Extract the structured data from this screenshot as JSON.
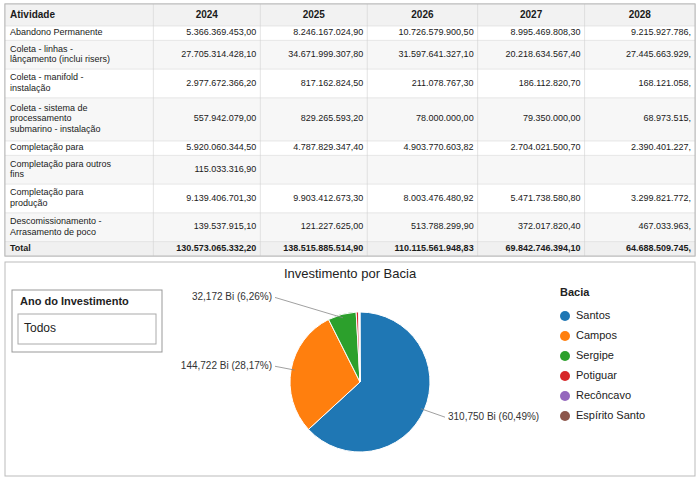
{
  "chart_data": [
    {
      "type": "table",
      "columns": [
        "Atividade",
        "2024",
        "2025",
        "2026",
        "2027",
        "2028"
      ],
      "rows": [
        [
          "Abandono Permanente",
          "5.366.369.453,00",
          "8.246.167.024,90",
          "10.726.579.900,50",
          "8.995.469.808,30",
          "9.215.927.786,"
        ],
        [
          "Coleta - linhas -\nlânçamento (inclui risers)",
          "27.705.314.428,10",
          "34.671.999.307,80",
          "31.597.641.327,10",
          "20.218.634.567,40",
          "27.445.663.929,"
        ],
        [
          "Coleta - manifold -\ninstalação",
          "2.977.672.366,20",
          "817.162.824,50",
          "211.078.767,30",
          "186.112.820,70",
          "168.121.058,"
        ],
        [
          "Coleta - sistema de\nprocessamento\nsubmarino - instalação",
          "557.942.079,00",
          "829.265.593,20",
          "78.000.000,00",
          "79.350.000,00",
          "68.973.515,"
        ],
        [
          "Completação para",
          "5.920.060.344,50",
          "4.787.829.347,40",
          "4.903.770.603,82",
          "2.704.021.500,70",
          "2.390.401.227,"
        ],
        [
          "Completação para outros\nfins",
          "115.033.316,90",
          null,
          null,
          null,
          null
        ],
        [
          "Completação para\nprodução",
          "9.139.406.701,30",
          "9.903.412.673,30",
          "8.003.476.480,92",
          "5.471.738.580,80",
          "3.299.821.772,"
        ],
        [
          "Descomissionamento -\nArrasamento de poco",
          "139.537.915,10",
          "121.227.625,00",
          "513.788.299,90",
          "372.017.820,40",
          "467.033.963,"
        ],
        [
          "Total",
          "130.573.065.332,20",
          "138.515.885.514,90",
          "110.115.561.948,83",
          "69.842.746.394,10",
          "64.688.509.745,"
        ]
      ]
    },
    {
      "type": "pie",
      "title": "Investimento por Bacia",
      "categories": [
        "Santos",
        "Campos",
        "Sergipe",
        "Potiguar",
        "Recôncavo",
        "Espírito Santo"
      ],
      "values": [
        310.75,
        144.722,
        32.172,
        2.8,
        0.9,
        0.6
      ],
      "value_labels": [
        "310,750 Bi (60,49%)",
        "144,722 Bi (28,17%)",
        "32,172 Bi (6,26%)",
        null,
        null,
        null
      ],
      "data_labels": true,
      "legend_title": "Bacia",
      "annotations": [
        "Ano do Investimento",
        "Todos"
      ]
    }
  ]
}
